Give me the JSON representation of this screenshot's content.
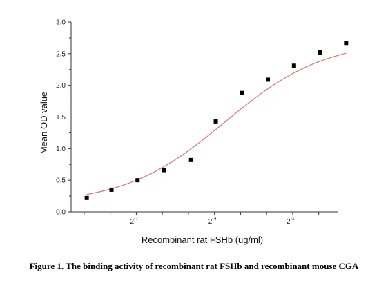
{
  "chart_data": {
    "type": "scatter",
    "xlabel": "Recombinant rat FSHb (ug/ml)",
    "ylabel": "Mean OD value",
    "x_scale": "log2",
    "xlim_exp": [
      -9.5,
      0.75
    ],
    "ylim": [
      0,
      3.0
    ],
    "yticks": [
      {
        "value": 0.0,
        "label": "0.0"
      },
      {
        "value": 0.5,
        "label": "0.5"
      },
      {
        "value": 1.0,
        "label": "1.0"
      },
      {
        "value": 1.5,
        "label": "1.5"
      },
      {
        "value": 2.0,
        "label": "2.0"
      },
      {
        "value": 2.5,
        "label": "2.5"
      },
      {
        "value": 3.0,
        "label": "3.0"
      }
    ],
    "xtick_labels": [
      {
        "exp": -7,
        "base": "2",
        "sup": "-7"
      },
      {
        "exp": -4,
        "base": "2",
        "sup": "-4"
      },
      {
        "exp": -1,
        "base": "2",
        "sup": "-1"
      }
    ],
    "xticks_minor_exp": [
      -9,
      -8,
      -7,
      -6,
      -5,
      -4,
      -3,
      -2,
      -1,
      0
    ],
    "points": [
      {
        "x_exp": -8.9,
        "y": 0.22
      },
      {
        "x_exp": -7.95,
        "y": 0.35
      },
      {
        "x_exp": -6.95,
        "y": 0.5
      },
      {
        "x_exp": -5.95,
        "y": 0.66
      },
      {
        "x_exp": -4.9,
        "y": 0.82
      },
      {
        "x_exp": -3.95,
        "y": 1.43
      },
      {
        "x_exp": -2.95,
        "y": 1.88
      },
      {
        "x_exp": -1.95,
        "y": 2.09
      },
      {
        "x_exp": -0.95,
        "y": 2.31
      },
      {
        "x_exp": 0.05,
        "y": 2.52
      },
      {
        "x_exp": 1.05,
        "y": 2.67
      }
    ],
    "fit": {
      "model": "4PL",
      "bottom": 0.12,
      "top": 2.72,
      "ec50_exp": -3.6,
      "slope": 0.75,
      "color": "#e07070"
    }
  },
  "caption": "Figure 1. The binding activity of recombinant rat FSHb and recombinant mouse CGA"
}
